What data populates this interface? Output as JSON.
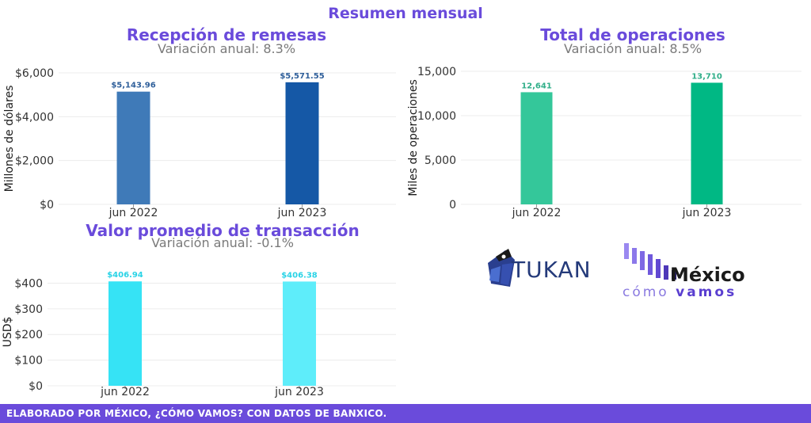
{
  "title": "Resumen mensual",
  "logos": {
    "tukan": "TUKAN",
    "mexico": "México",
    "como": "cómo",
    "vamos": "vamos"
  },
  "footer": "ELABORADO POR MÉXICO, ¿CÓMO VAMOS? CON DATOS DE BANXICO.",
  "chart_data": [
    {
      "type": "bar",
      "title": "Recepción de remesas",
      "subtitle": "Variación anual: 8.3%",
      "ylabel": "Millones de dólares",
      "xlabel": "",
      "categories": [
        "jun 2022",
        "jun 2023"
      ],
      "values": [
        5143.96,
        5571.55
      ],
      "value_labels": [
        "$5,143.96",
        "$5,571.55"
      ],
      "colors": [
        "#3f7ab8",
        "#1558a6"
      ],
      "label_color": "#2f5f9a",
      "ylim": [
        0,
        6000
      ],
      "yticks": [
        0,
        2000,
        4000,
        6000
      ],
      "ytick_labels": [
        "$0",
        "$2,000",
        "$4,000",
        "$6,000"
      ],
      "grid": true,
      "legend": "none"
    },
    {
      "type": "bar",
      "title": "Total de operaciones",
      "subtitle": "Variación anual: 8.5%",
      "ylabel": "Miles de operaciones",
      "xlabel": "",
      "categories": [
        "jun 2022",
        "jun 2023"
      ],
      "values": [
        12641,
        13710
      ],
      "value_labels": [
        "12,641",
        "13,710"
      ],
      "colors": [
        "#34c79a",
        "#00b884"
      ],
      "label_color": "#2fae88",
      "ylim": [
        0,
        15000
      ],
      "yticks": [
        0,
        5000,
        10000,
        15000
      ],
      "ytick_labels": [
        "0",
        "5,000",
        "10,000",
        "15,000"
      ],
      "grid": true,
      "legend": "none"
    },
    {
      "type": "bar",
      "title": "Valor promedio de transacción",
      "subtitle": "Variación anual: -0.1%",
      "ylabel": "USD$",
      "xlabel": "",
      "categories": [
        "jun 2022",
        "jun 2023"
      ],
      "values": [
        406.94,
        406.38
      ],
      "value_labels": [
        "$406.94",
        "$406.38"
      ],
      "colors": [
        "#36e3f5",
        "#5eedfa"
      ],
      "label_color": "#2ad3e6",
      "ylim": [
        0,
        420
      ],
      "yticks": [
        0,
        100,
        200,
        300,
        400
      ],
      "ytick_labels": [
        "$0",
        "$100",
        "$200",
        "$300",
        "$400"
      ],
      "grid": true,
      "legend": "none"
    }
  ]
}
